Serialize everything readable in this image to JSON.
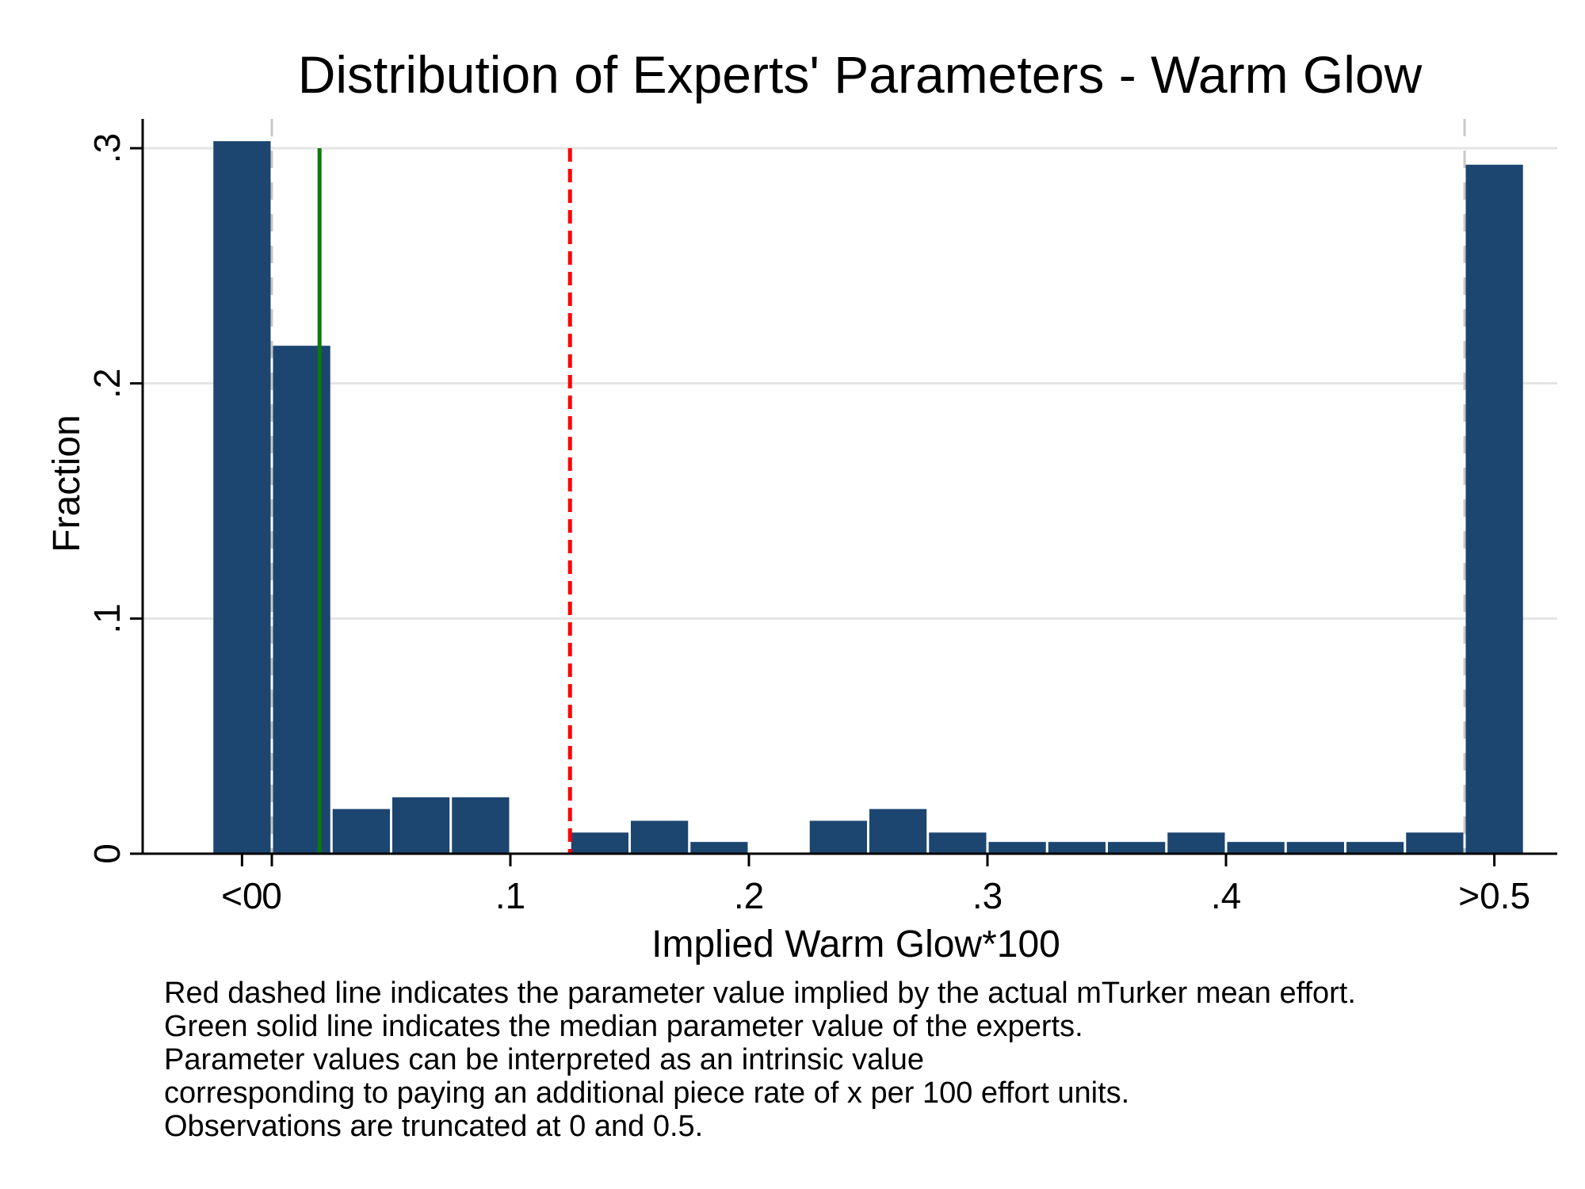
{
  "chart_data": {
    "type": "bar",
    "title": "Distribution of Experts' Parameters - Warm Glow",
    "xlabel": "Implied Warm Glow*100",
    "ylabel": "Fraction",
    "xlim": [
      -0.025,
      0.525
    ],
    "ylim": [
      0,
      0.3
    ],
    "grid": true,
    "x_ticks": [
      {
        "value": -0.0125,
        "label": "<0"
      },
      {
        "value": 0,
        "label": "0"
      },
      {
        "value": 0.1,
        "label": ".1"
      },
      {
        "value": 0.2,
        "label": ".2"
      },
      {
        "value": 0.3,
        "label": ".3"
      },
      {
        "value": 0.4,
        "label": ".4"
      },
      {
        "value": 0.5125,
        "label": ">0.5"
      }
    ],
    "y_ticks": [
      {
        "value": 0,
        "label": "0"
      },
      {
        "value": 0.1,
        "label": ".1"
      },
      {
        "value": 0.2,
        "label": ".2"
      },
      {
        "value": 0.3,
        "label": ".3"
      }
    ],
    "bin_width": 0.025,
    "bins": [
      {
        "start": -0.025,
        "value": 0.303
      },
      {
        "start": 0.0,
        "value": 0.216
      },
      {
        "start": 0.025,
        "value": 0.019
      },
      {
        "start": 0.05,
        "value": 0.024
      },
      {
        "start": 0.075,
        "value": 0.024
      },
      {
        "start": 0.1,
        "value": 0.0
      },
      {
        "start": 0.125,
        "value": 0.009
      },
      {
        "start": 0.15,
        "value": 0.014
      },
      {
        "start": 0.175,
        "value": 0.005
      },
      {
        "start": 0.2,
        "value": 0.0
      },
      {
        "start": 0.225,
        "value": 0.014
      },
      {
        "start": 0.25,
        "value": 0.019
      },
      {
        "start": 0.275,
        "value": 0.009
      },
      {
        "start": 0.3,
        "value": 0.005
      },
      {
        "start": 0.325,
        "value": 0.005
      },
      {
        "start": 0.35,
        "value": 0.005
      },
      {
        "start": 0.375,
        "value": 0.009
      },
      {
        "start": 0.4,
        "value": 0.005
      },
      {
        "start": 0.425,
        "value": 0.005
      },
      {
        "start": 0.45,
        "value": 0.005
      },
      {
        "start": 0.475,
        "value": 0.009
      },
      {
        "start": 0.5,
        "value": 0.293
      }
    ],
    "reference_lines": [
      {
        "name": "actual mTurker mean effort",
        "x": 0.125,
        "style": "dashed",
        "color": "#ff0000"
      },
      {
        "name": "median parameter value of experts",
        "x": 0.02,
        "style": "solid",
        "color": "#0a7a0a"
      }
    ],
    "truncation_lines": [
      0,
      0.5
    ],
    "bar_color": "#1c4670",
    "notes": [
      "Red dashed line indicates the parameter value implied by the actual mTurker mean effort.",
      "Green solid line indicates the median parameter value of the experts.",
      "Parameter values can be interpreted as an intrinsic value",
      "corresponding to paying an additional piece rate of x per 100 effort units.",
      "Observations are truncated at 0 and 0.5."
    ]
  }
}
